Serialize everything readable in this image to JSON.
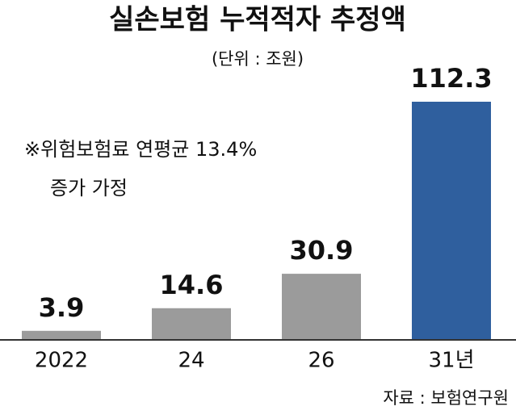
{
  "chart_data": {
    "type": "bar",
    "title": "실손보험 누적적자 추정액",
    "subtitle": "(단위 : 조원)",
    "annotation": [
      "※위험보험료 연평균 13.4%",
      "증가 가정"
    ],
    "source": "자료 : 보험연구원",
    "categories": [
      "2022",
      "24",
      "26",
      "31년"
    ],
    "values": [
      3.9,
      14.6,
      30.9,
      112.3
    ],
    "colors": [
      "#9b9b9b",
      "#9b9b9b",
      "#9b9b9b",
      "#2f5f9e"
    ]
  }
}
